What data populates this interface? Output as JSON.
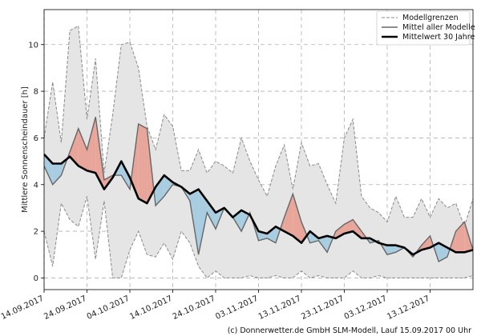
{
  "chart_data": {
    "type": "area",
    "ylabel": "Mittlere Sonnenscheindauer [h]",
    "xlabel": "",
    "ylim": [
      -0.5,
      11.5
    ],
    "yticks": [
      0,
      2,
      4,
      6,
      8,
      10
    ],
    "xlim": [
      0,
      100
    ],
    "xticks": [
      {
        "x": 0,
        "label": "14.09.2017"
      },
      {
        "x": 10,
        "label": "24.09.2017"
      },
      {
        "x": 20,
        "label": "04.10.2017"
      },
      {
        "x": 30,
        "label": "14.10.2017"
      },
      {
        "x": 40,
        "label": "24.10.2017"
      },
      {
        "x": 50,
        "label": "03.11.2017"
      },
      {
        "x": 60,
        "label": "13.11.2017"
      },
      {
        "x": 70,
        "label": "23.11.2017"
      },
      {
        "x": 80,
        "label": "03.12.2017"
      },
      {
        "x": 90,
        "label": "13.12.2017"
      }
    ],
    "grid": true,
    "legend_position": "top-right",
    "series": [
      {
        "name": "Modellgrenzen",
        "style": "dashed-gray-band"
      },
      {
        "name": "Mittel aller Modelle",
        "style": "gray-line"
      },
      {
        "name": "Mittelwert 30 Jahre",
        "style": "black-thick-line"
      }
    ],
    "x": [
      0,
      2,
      4,
      6,
      8,
      10,
      12,
      14,
      16,
      18,
      20,
      22,
      24,
      26,
      28,
      30,
      32,
      34,
      36,
      38,
      40,
      42,
      44,
      46,
      48,
      50,
      52,
      54,
      56,
      58,
      60,
      62,
      64,
      66,
      68,
      70,
      72,
      74,
      76,
      78,
      80,
      82,
      84,
      86,
      88,
      90,
      92,
      94,
      96,
      98,
      100
    ],
    "band_upper": [
      6.0,
      8.4,
      5.8,
      10.6,
      10.8,
      6.8,
      9.4,
      4.5,
      7.0,
      10.0,
      10.1,
      9.0,
      6.5,
      5.5,
      7.0,
      6.5,
      4.6,
      4.6,
      5.5,
      4.5,
      5.0,
      4.8,
      4.5,
      6.0,
      5.0,
      4.2,
      3.5,
      4.8,
      5.7,
      3.8,
      5.8,
      4.8,
      4.9,
      4.0,
      3.2,
      6.0,
      6.8,
      3.5,
      3.0,
      2.8,
      2.4,
      3.5,
      2.6,
      2.6,
      3.4,
      2.6,
      3.4,
      3.0,
      3.2,
      2.2,
      3.4
    ],
    "band_lower": [
      2.0,
      0.5,
      3.2,
      2.5,
      2.2,
      3.5,
      0.8,
      3.3,
      0.0,
      0.0,
      1.2,
      2.0,
      1.0,
      0.9,
      1.5,
      0.8,
      2.0,
      1.5,
      0.5,
      0.0,
      0.3,
      0.0,
      0.0,
      0.0,
      0.1,
      0.0,
      0.0,
      0.1,
      0.0,
      0.0,
      0.3,
      0.0,
      0.1,
      0.0,
      0.0,
      0.0,
      0.3,
      0.0,
      0.0,
      0.1,
      0.0,
      0.0,
      0.0,
      0.0,
      0.0,
      0.0,
      0.0,
      0.0,
      0.0,
      0.0,
      0.1
    ],
    "model_mean": [
      4.8,
      4.0,
      4.4,
      5.4,
      6.4,
      5.5,
      6.9,
      4.2,
      4.4,
      4.4,
      3.8,
      6.6,
      6.4,
      3.1,
      3.5,
      4.0,
      3.9,
      3.3,
      1.0,
      2.8,
      2.1,
      3.0,
      2.6,
      2.0,
      2.8,
      1.6,
      1.7,
      1.5,
      2.6,
      3.6,
      2.4,
      1.5,
      1.6,
      1.1,
      2.0,
      2.3,
      2.5,
      2.0,
      1.5,
      1.6,
      1.0,
      1.1,
      1.3,
      0.9,
      1.4,
      1.8,
      0.7,
      0.9,
      2.0,
      2.4,
      1.2
    ],
    "climatology": [
      5.3,
      4.9,
      4.9,
      5.2,
      4.8,
      4.6,
      4.5,
      3.8,
      4.3,
      5.0,
      4.3,
      3.4,
      3.2,
      3.9,
      4.4,
      4.1,
      3.9,
      3.6,
      3.8,
      3.3,
      2.8,
      3.0,
      2.6,
      2.9,
      2.7,
      2.0,
      1.9,
      2.2,
      2.0,
      1.8,
      1.5,
      2.0,
      1.7,
      1.8,
      1.7,
      1.9,
      2.0,
      1.7,
      1.7,
      1.5,
      1.4,
      1.4,
      1.3,
      1.0,
      1.2,
      1.3,
      1.5,
      1.3,
      1.1,
      1.1,
      1.2
    ],
    "colors": {
      "band_fill": "#e5e5e5",
      "band_edge": "#8a8a8a",
      "above": "#e8a59a",
      "below": "#a9cde0",
      "mean_line": "#666666",
      "clim_line": "#000000",
      "grid": "#b0b0b0"
    }
  },
  "credit": "(c) Donnerwetter.de GmbH SLM-Modell, Lauf 15.09.2017 00 Uhr"
}
